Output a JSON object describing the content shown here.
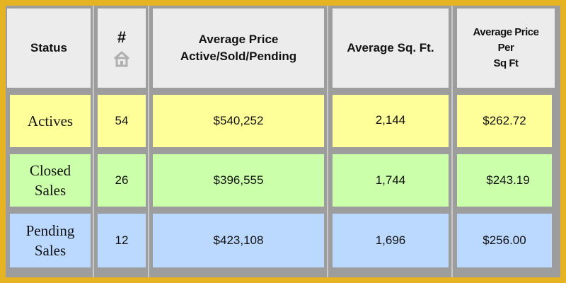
{
  "header": {
    "status": "Status",
    "count_symbol": "#",
    "avg_price_line1": "Average Price",
    "avg_price_line2": "Active/Sold/Pending",
    "avg_sqft": "Average Sq. Ft.",
    "ppsf_line1": "Average Price",
    "ppsf_line2": "Per",
    "ppsf_line3": "Sq Ft",
    "house_icon": "house-icon"
  },
  "rows": [
    {
      "status_line1": "Actives",
      "status_line2": "",
      "count": "54",
      "avg_price": "$540,252",
      "avg_sqft": "2,144",
      "price_per_sqft": "$262.72",
      "color": "#FFFF99"
    },
    {
      "status_line1": "Closed",
      "status_line2": "Sales",
      "count": "26",
      "avg_price": "$396,555",
      "avg_sqft": "1,744",
      "price_per_sqft": "$243.19",
      "color": "#CCFFAA"
    },
    {
      "status_line1": "Pending",
      "status_line2": "Sales",
      "count": "12",
      "avg_price": "$423,108",
      "avg_sqft": "1,696",
      "price_per_sqft": "$256.00",
      "color": "#BBD8FF"
    }
  ],
  "colors": {
    "frame": "#E6B422",
    "grid": "#9d9d9d",
    "header_bg": "#ececec"
  }
}
